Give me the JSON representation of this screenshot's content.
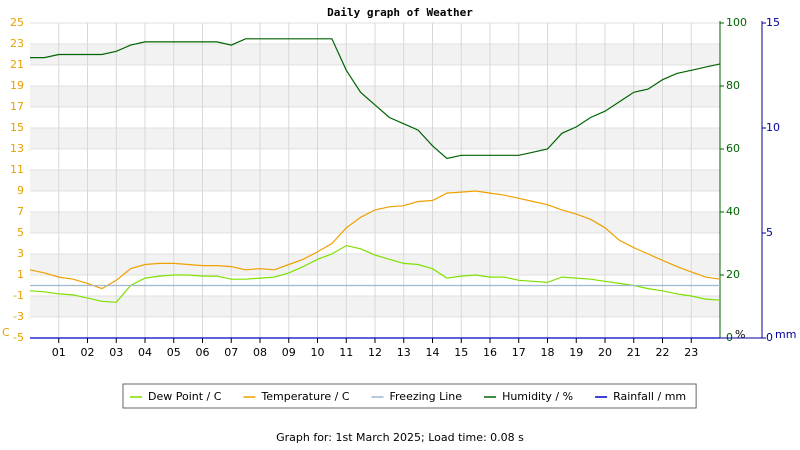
{
  "chart_data": {
    "type": "line",
    "title": "Daily graph of Weather",
    "footer": "Graph for: 1st March 2025; Load time: 0.08 s",
    "y_unit": "C",
    "y2_unit": "%",
    "y3_unit": "mm",
    "y_color": "#e6a000",
    "y2_color": "#006400",
    "y3_color": "#000099",
    "grid": true,
    "xlim": [
      0,
      24
    ],
    "xticks": [
      {
        "value": 1,
        "label": "01"
      },
      {
        "value": 2,
        "label": "02"
      },
      {
        "value": 3,
        "label": "03"
      },
      {
        "value": 4,
        "label": "04"
      },
      {
        "value": 5,
        "label": "05"
      },
      {
        "value": 6,
        "label": "06"
      },
      {
        "value": 7,
        "label": "07"
      },
      {
        "value": 8,
        "label": "08"
      },
      {
        "value": 9,
        "label": "09"
      },
      10,
      11,
      12,
      13,
      14,
      15,
      16,
      17,
      18,
      19,
      20,
      21,
      22,
      23
    ],
    "ylim": [
      -5,
      25
    ],
    "yticks": [
      -5,
      -3,
      -1,
      1,
      3,
      5,
      7,
      9,
      11,
      13,
      15,
      17,
      19,
      21,
      23,
      25
    ],
    "y2lim": [
      0,
      100
    ],
    "y2ticks": [
      0,
      20,
      40,
      60,
      80,
      100
    ],
    "y3lim": [
      0,
      15
    ],
    "y3ticks": [
      0,
      5,
      10,
      15
    ],
    "x": [
      0,
      0.5,
      1,
      1.5,
      2,
      2.5,
      3,
      3.5,
      4,
      4.5,
      5,
      5.5,
      6,
      6.5,
      7,
      7.5,
      8,
      8.5,
      9,
      9.5,
      10,
      10.5,
      11,
      11.5,
      12,
      12.5,
      13,
      13.5,
      14,
      14.5,
      15,
      15.5,
      16,
      16.5,
      17,
      17.5,
      18,
      18.5,
      19,
      19.5,
      20,
      20.5,
      21,
      21.5,
      22,
      22.5,
      23,
      23.5,
      24
    ],
    "series": [
      {
        "name": "Dew Point / C",
        "color": "#7ee000",
        "axis": "y",
        "values": [
          -0.5,
          -0.6,
          -0.8,
          -0.9,
          -1.2,
          -1.5,
          -1.6,
          0,
          0.7,
          0.9,
          1.0,
          1.0,
          0.9,
          0.9,
          0.6,
          0.6,
          0.7,
          0.8,
          1.2,
          1.8,
          2.5,
          3.0,
          3.8,
          3.5,
          2.9,
          2.5,
          2.1,
          2.0,
          1.6,
          0.7,
          0.9,
          1.0,
          0.8,
          0.8,
          0.5,
          0.4,
          0.3,
          0.8,
          0.7,
          0.6,
          0.4,
          0.2,
          0,
          -0.3,
          -0.5,
          -0.8,
          -1.0,
          -1.3,
          -1.4
        ]
      },
      {
        "name": "Temperature / C",
        "color": "#f0a000",
        "axis": "y",
        "values": [
          1.5,
          1.2,
          0.8,
          0.6,
          0.2,
          -0.3,
          0.5,
          1.6,
          2.0,
          2.1,
          2.1,
          2.0,
          1.9,
          1.9,
          1.8,
          1.5,
          1.6,
          1.5,
          2.0,
          2.5,
          3.2,
          4.0,
          5.5,
          6.5,
          7.2,
          7.5,
          7.6,
          8.0,
          8.1,
          8.8,
          8.9,
          9.0,
          8.8,
          8.6,
          8.3,
          8.0,
          7.7,
          7.2,
          6.8,
          6.3,
          5.5,
          4.3,
          3.6,
          3.0,
          2.4,
          1.8,
          1.3,
          0.8,
          0.6
        ]
      },
      {
        "name": "Freezing Line",
        "color": "#a0b8cc",
        "axis": "y",
        "values": [
          0,
          0,
          0,
          0,
          0,
          0,
          0,
          0,
          0,
          0,
          0,
          0,
          0,
          0,
          0,
          0,
          0,
          0,
          0,
          0,
          0,
          0,
          0,
          0,
          0,
          0,
          0,
          0,
          0,
          0,
          0,
          0,
          0,
          0,
          0,
          0,
          0,
          0,
          0,
          0,
          0,
          0,
          0,
          0,
          0,
          0,
          0,
          0,
          0
        ]
      },
      {
        "name": "Humidity / %",
        "color": "#006400",
        "axis": "y2",
        "values": [
          89,
          89,
          90,
          90,
          90,
          90,
          91,
          93,
          94,
          94,
          94,
          94,
          94,
          94,
          93,
          95,
          95,
          95,
          95,
          95,
          95,
          95,
          85,
          78,
          74,
          70,
          68,
          66,
          61,
          57,
          58,
          58,
          58,
          58,
          58,
          59,
          60,
          65,
          67,
          70,
          72,
          75,
          78,
          79,
          82,
          84,
          85,
          86,
          87
        ]
      },
      {
        "name": "Rainfall / mm",
        "color": "#0000cc",
        "axis": "y3",
        "values": [
          0,
          0,
          0,
          0,
          0,
          0,
          0,
          0,
          0,
          0,
          0,
          0,
          0,
          0,
          0,
          0,
          0,
          0,
          0,
          0,
          0,
          0,
          0,
          0,
          0,
          0,
          0,
          0,
          0,
          0,
          0,
          0,
          0,
          0,
          0,
          0,
          0,
          0,
          0,
          0,
          0,
          0,
          0,
          0,
          0,
          0,
          0,
          0,
          0
        ]
      }
    ]
  }
}
